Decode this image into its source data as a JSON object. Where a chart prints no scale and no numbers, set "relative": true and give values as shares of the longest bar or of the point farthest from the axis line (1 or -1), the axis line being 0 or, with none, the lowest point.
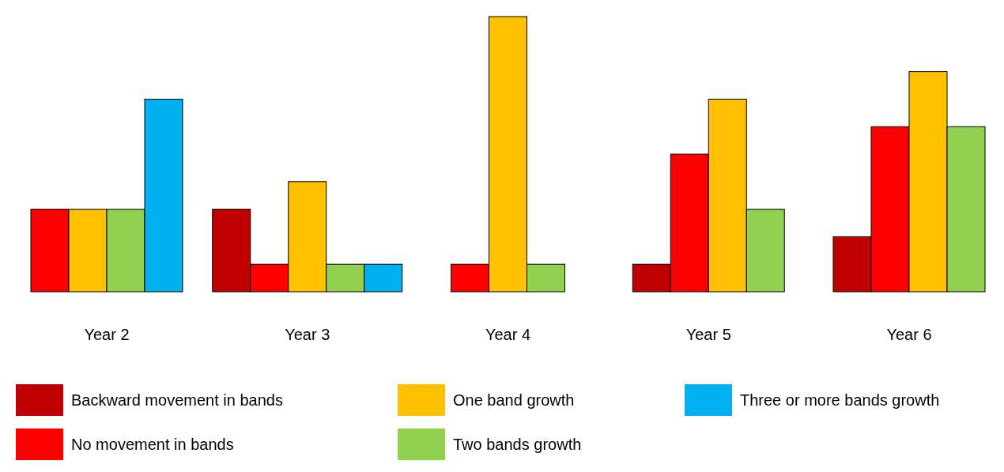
{
  "chart_data": {
    "type": "bar",
    "relative": true,
    "legend": "bottom",
    "categories": [
      "Year 2",
      "Year 3",
      "Year 4",
      "Year 5",
      "Year 6"
    ],
    "series": [
      {
        "name": "Backward movement in bands",
        "color": "#c00000",
        "values": [
          null,
          0.3,
          null,
          0.1,
          0.2
        ]
      },
      {
        "name": "No movement in bands",
        "color": "#ff0000",
        "values": [
          0.3,
          0.1,
          0.1,
          0.5,
          0.6
        ]
      },
      {
        "name": "One band growth",
        "color": "#ffc000",
        "values": [
          0.3,
          0.4,
          1,
          0.7,
          0.8
        ]
      },
      {
        "name": "Two bands growth",
        "color": "#92d050",
        "values": [
          0.3,
          0.1,
          0.1,
          0.3,
          0.6
        ]
      },
      {
        "name": "Three or more bands growth",
        "color": "#00b0f0",
        "values": [
          0.7,
          0.1,
          null,
          null,
          null
        ]
      }
    ]
  }
}
